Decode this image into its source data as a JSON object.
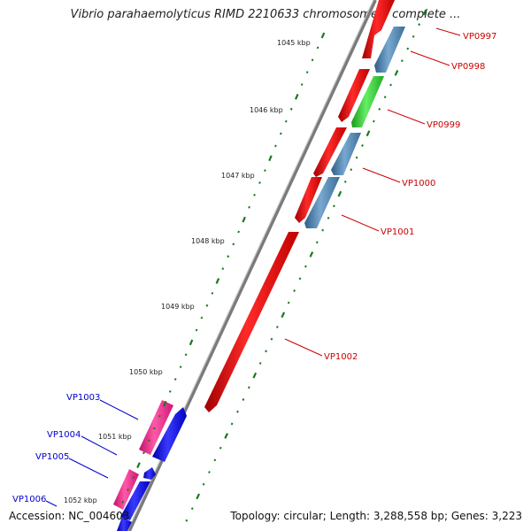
{
  "title": "Vibrio parahaemolyticus RIMD 2210633 chromosome I, complete ...",
  "footer": {
    "accession": "Accession: NC_004603",
    "summary": "Topology: circular; Length: 3,288,558 bp; Genes: 3,223"
  },
  "ticks": [
    "1045 kbp",
    "1046 kbp",
    "1047 kbp",
    "1048 kbp",
    "1049 kbp",
    "1050 kbp",
    "1051 kbp",
    "1052 kbp"
  ],
  "genes_right": [
    "VP0997",
    "VP0998",
    "VP0999",
    "VP1000",
    "VP1001",
    "VP1002"
  ],
  "genes_left": [
    "VP1003",
    "VP1004",
    "VP1005",
    "VP1006"
  ],
  "colors": {
    "forward_gene": "#ff0000",
    "reverse_gene_steel": "#4682b4",
    "reverse_gene_green": "#33cc33",
    "pink_gene": "#ff1493",
    "blue_gene": "#0000ff",
    "tick": "#1a7a1a",
    "right_labels": "#cc0000",
    "left_labels": "#0000cc",
    "backbone": "#888888"
  }
}
